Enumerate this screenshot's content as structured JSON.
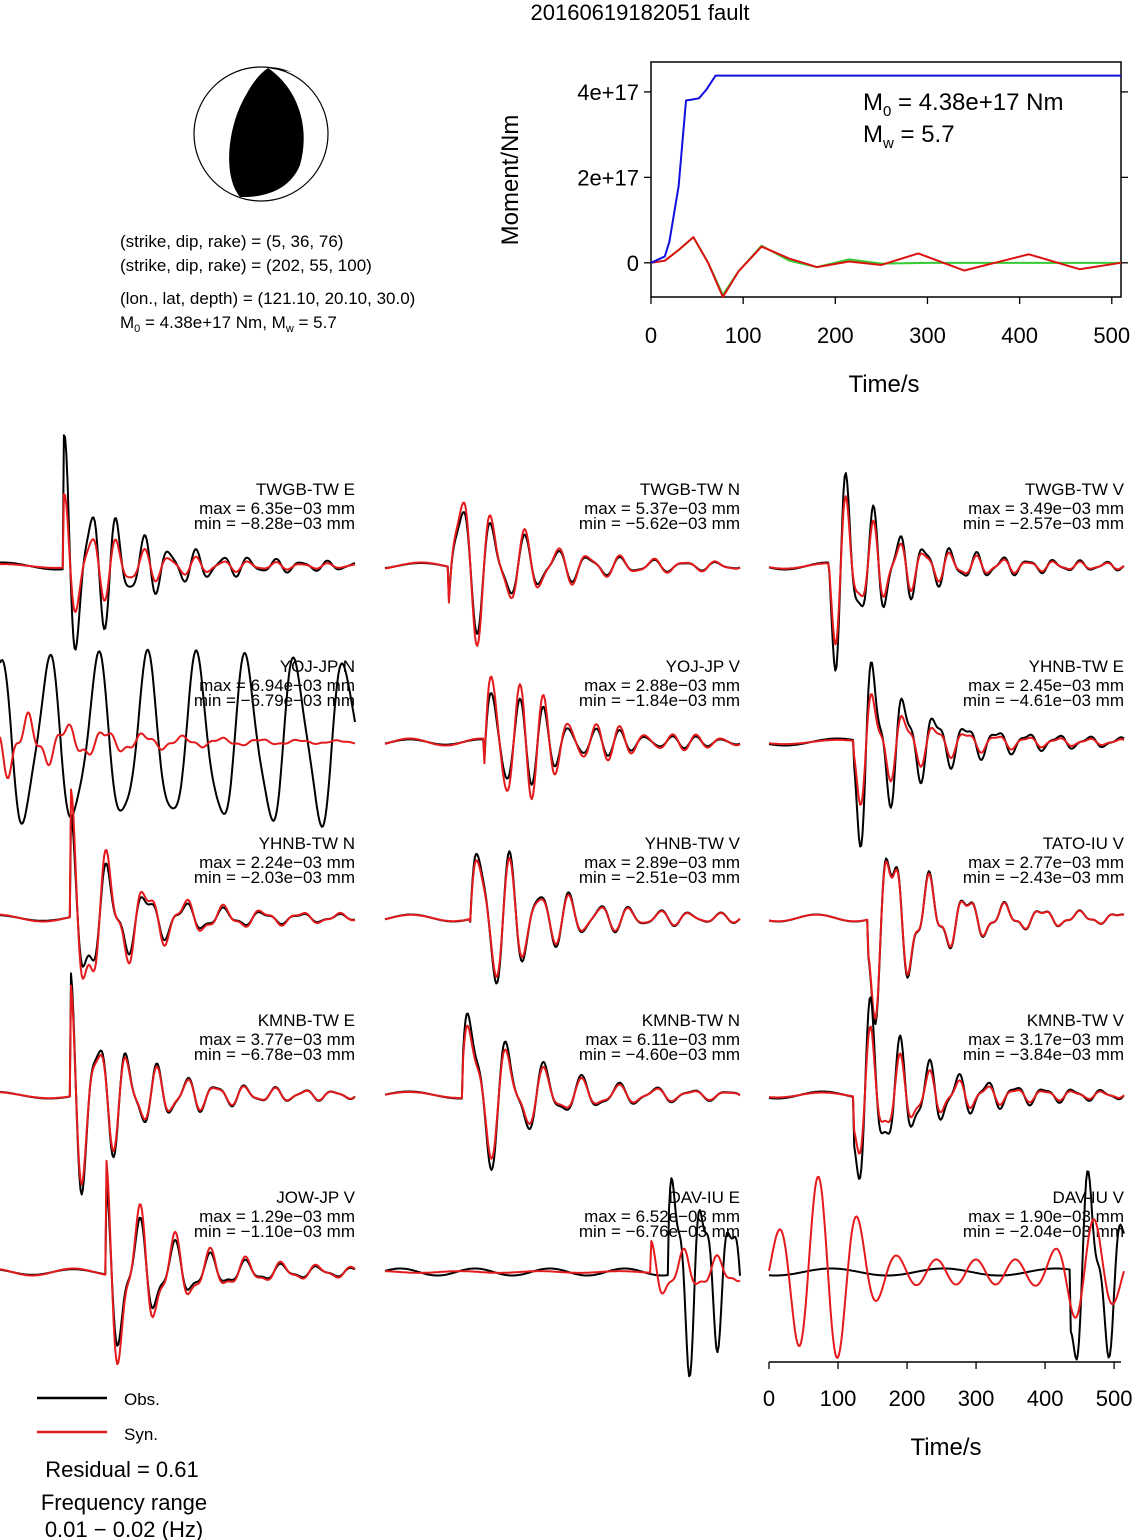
{
  "title": "20160619182051 fault",
  "mechanism": {
    "lines": [
      "(strike, dip, rake) = (5, 36, 76)",
      "(strike, dip, rake) = (202, 55, 100)",
      "(lon., lat, depth) = (121.10, 20.10, 30.0)"
    ],
    "m0_line": "4.38e+17 Nm, M",
    "mw_value": " = 5.7"
  },
  "colors": {
    "obs": "#000000",
    "syn": "#e41a1c",
    "moment": "#1010e0",
    "stf_green": "#33cc33",
    "stf_red": "#dd1111"
  },
  "legend": {
    "obs_label": "Obs.",
    "syn_label": "Syn."
  },
  "residual": "Residual = 0.61",
  "frequency": {
    "label": "Frequency range",
    "value": "0.01 − 0.02 (Hz)"
  },
  "chart_data": [
    {
      "type": "line",
      "title": "",
      "xlabel": "Time/s",
      "ylabel": "Moment/Nm",
      "xlim": [
        0,
        510
      ],
      "ylim": [
        -8e+16,
        4.7e+17
      ],
      "xticks": [
        0,
        100,
        200,
        300,
        400,
        500
      ],
      "yticks": [
        0,
        2e+17,
        4e+17
      ],
      "yticklabels": [
        "0",
        "2e+17",
        "4e+17"
      ],
      "annotation": {
        "m0": " = 4.38e+17 Nm",
        "mw": " = 5.7"
      },
      "series": [
        {
          "name": "",
          "color": "#1010e0",
          "x": [
            0,
            15,
            20,
            30,
            38,
            44,
            52,
            60,
            70,
            510
          ],
          "y": [
            0,
            1.5e+16,
            5e+16,
            1.8e+17,
            3.8e+17,
            3.82e+17,
            3.85e+17,
            4.05e+17,
            4.38e+17,
            4.38e+17
          ]
        },
        {
          "name": "",
          "color": "#33cc33",
          "x": [
            0,
            15,
            30,
            46,
            62,
            78,
            95,
            120,
            150,
            180,
            215,
            250,
            300,
            400,
            510
          ],
          "y": [
            0,
            5000000000000000.0,
            3e+16,
            6e+16,
            0.0,
            -7.5e+16,
            -2e+16,
            4e+16,
            5000000000000000.0,
            -1e+16,
            8000000000000000.0,
            -2000000000000000.0,
            0.0,
            0.0,
            0.0
          ]
        },
        {
          "name": "",
          "color": "#dd1111",
          "x": [
            0,
            15,
            30,
            46,
            62,
            78,
            95,
            120,
            150,
            180,
            215,
            250,
            290,
            340,
            410,
            465,
            510
          ],
          "y": [
            0,
            5000000000000000.0,
            3e+16,
            6e+16,
            0.0,
            -8e+16,
            -2e+16,
            3.8e+16,
            1e+16,
            -1e+16,
            3000000000000000.0,
            -5000000000000000.0,
            2.2e+16,
            -1.8e+16,
            2e+16,
            -1.5e+16,
            0.0
          ]
        }
      ]
    },
    {
      "type": "line",
      "title": "",
      "xlabel": "Time/s",
      "ylabel": "",
      "xlim": [
        0,
        510
      ],
      "xticks": [
        0,
        100,
        200,
        300,
        400,
        500
      ],
      "panels": [
        {
          "station": "TWGB-TW E",
          "max": "max = 6.35e−03 mm",
          "min": "min = −8.28e−03 mm",
          "obs_amp": 1.0,
          "syn_amp": 0.55,
          "onset": 0.18,
          "style": "burst"
        },
        {
          "station": "TWGB-TW N",
          "max": "max = 5.37e−03 mm",
          "min": "min = −5.62e−03 mm",
          "obs_amp": 0.85,
          "syn_amp": 1.0,
          "onset": 0.18,
          "style": "burst"
        },
        {
          "station": "TWGB-TW V",
          "max": "max = 3.49e−03 mm",
          "min": "min = −2.57e−03 mm",
          "obs_amp": 1.0,
          "syn_amp": 0.75,
          "onset": 0.17,
          "style": "burst"
        },
        {
          "station": "YOJ-JP N",
          "max": "max = 6.94e−03 mm",
          "min": "min = −6.79e−03 mm",
          "obs_amp": 1.0,
          "syn_amp": 0.3,
          "onset": 0.0,
          "style": "longperiod"
        },
        {
          "station": "YOJ-JP V",
          "max": "max = 2.88e−03 mm",
          "min": "min = −1.84e−03 mm",
          "obs_amp": 0.75,
          "syn_amp": 1.0,
          "onset": 0.28,
          "style": "burst"
        },
        {
          "station": "YHNB-TW E",
          "max": "max = 2.45e−03 mm",
          "min": "min = −4.61e−03 mm",
          "obs_amp": 1.0,
          "syn_amp": 0.6,
          "onset": 0.24,
          "style": "burst"
        },
        {
          "station": "YHNB-TW N",
          "max": "max = 2.24e−03 mm",
          "min": "min = −2.03e−03 mm",
          "obs_amp": 0.8,
          "syn_amp": 1.0,
          "onset": 0.2,
          "style": "burst"
        },
        {
          "station": "YHNB-TW V",
          "max": "max = 2.89e−03 mm",
          "min": "min = −2.51e−03 mm",
          "obs_amp": 1.0,
          "syn_amp": 0.9,
          "onset": 0.24,
          "style": "burst"
        },
        {
          "station": "TATO-IU V",
          "max": "max = 2.77e−03 mm",
          "min": "min = −2.43e−03 mm",
          "obs_amp": 1.0,
          "syn_amp": 0.95,
          "onset": 0.28,
          "style": "burst"
        },
        {
          "station": "KMNB-TW E",
          "max": "max = 3.77e−03 mm",
          "min": "min = −6.78e−03 mm",
          "obs_amp": 1.0,
          "syn_amp": 0.9,
          "onset": 0.2,
          "style": "burst"
        },
        {
          "station": "KMNB-TW N",
          "max": "max = 6.11e−03 mm",
          "min": "min = −4.60e−03 mm",
          "obs_amp": 1.0,
          "syn_amp": 0.85,
          "onset": 0.22,
          "style": "burst"
        },
        {
          "station": "KMNB-TW V",
          "max": "max = 3.17e−03 mm",
          "min": "min = −3.84e−03 mm",
          "obs_amp": 1.0,
          "syn_amp": 0.7,
          "onset": 0.24,
          "style": "burst"
        },
        {
          "station": "JOW-JP V",
          "max": "max = 1.29e−03 mm",
          "min": "min = −1.10e−03 mm",
          "obs_amp": 0.8,
          "syn_amp": 1.0,
          "onset": 0.3,
          "style": "burst"
        },
        {
          "station": "DAV-IU E",
          "max": "max = 6.52e−03 mm",
          "min": "min = −6.76e−03 mm",
          "obs_amp": 1.0,
          "syn_amp": 0.25,
          "onset": 0.8,
          "style": "late"
        },
        {
          "station": "DAV-IU V",
          "max": "max = 1.90e−03 mm",
          "min": "min = −2.04e−03 mm",
          "obs_amp": 1.0,
          "syn_amp": 0.95,
          "onset": 0.85,
          "style": "late_syn_early"
        }
      ]
    }
  ]
}
